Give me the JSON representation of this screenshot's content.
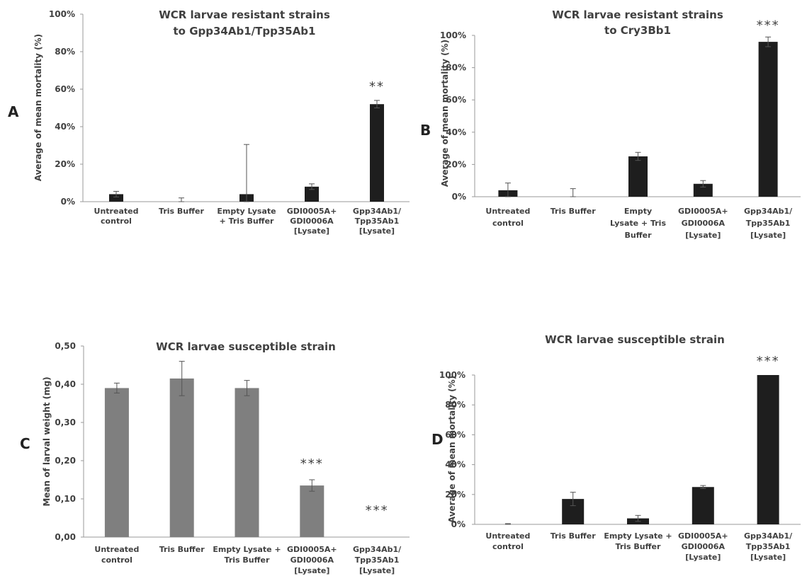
{
  "chart_data": [
    {
      "panel": "A",
      "type": "bar",
      "title": [
        "WCR larvae resistant strains",
        "to Gpp34Ab1/Tpp35Ab1"
      ],
      "ylabel": "Average of mean mortality (%)",
      "ylim": [
        0,
        100
      ],
      "yticks": [
        "0%",
        "20%",
        "40%",
        "60%",
        "80%",
        "100%"
      ],
      "categories": [
        [
          "Untreated",
          "control"
        ],
        [
          "Tris Buffer"
        ],
        [
          "Empty Lysate",
          "+ Tris Buffer"
        ],
        [
          "GDI0005A+",
          "GDI0006A",
          "[Lysate]"
        ],
        [
          "Gpp34Ab1/",
          "Tpp35Ab1",
          "[Lysate]"
        ]
      ],
      "values": [
        4,
        0,
        4,
        8,
        52
      ],
      "errors": [
        1.5,
        2,
        26.5,
        1.5,
        2
      ],
      "significance": [
        "",
        "",
        "",
        "",
        "**"
      ],
      "bar_color": "#1e1e1e"
    },
    {
      "panel": "B",
      "type": "bar",
      "title": [
        "WCR larvae resistant strains",
        "to Cry3Bb1"
      ],
      "ylabel": "Average of mean mortality (%)",
      "ylim": [
        0,
        100
      ],
      "yticks": [
        "0%",
        "20%",
        "40%",
        "60%",
        "80%",
        "100%"
      ],
      "categories": [
        [
          "Untreated",
          "control"
        ],
        [
          "Tris Buffer"
        ],
        [
          "Empty",
          "Lysate + Tris",
          "Buffer"
        ],
        [
          "GDI0005A+",
          "GDI0006A",
          "[Lysate]"
        ],
        [
          "Gpp34Ab1/",
          "Tpp35Ab1",
          "[Lysate]"
        ]
      ],
      "values": [
        4,
        0,
        25,
        8,
        96
      ],
      "errors": [
        4.5,
        5,
        2.5,
        2,
        3
      ],
      "significance": [
        "",
        "",
        "",
        "",
        "***"
      ],
      "bar_color": "#1e1e1e"
    },
    {
      "panel": "C",
      "type": "bar",
      "title": [
        "WCR larvae susceptible strain"
      ],
      "ylabel": "Mean of larval weight (mg)",
      "ylim": [
        0,
        0.5
      ],
      "yticks": [
        "0,00",
        "0,10",
        "0,20",
        "0,30",
        "0,40",
        "0,50"
      ],
      "categories": [
        [
          "Untreated",
          "control"
        ],
        [
          "Tris Buffer"
        ],
        [
          "Empty Lysate +",
          "Tris Buffer"
        ],
        [
          "GDI0005A+",
          "GDI0006A",
          "[Lysate]"
        ],
        [
          "Gpp34Ab1/",
          "Tpp35Ab1",
          "[Lysate]"
        ]
      ],
      "values": [
        0.39,
        0.415,
        0.39,
        0.135,
        0
      ],
      "errors": [
        0.013,
        0.045,
        0.02,
        0.015,
        0
      ],
      "significance": [
        "",
        "",
        "",
        "***",
        "***"
      ],
      "bar_color": "#7f7f7f"
    },
    {
      "panel": "D",
      "type": "bar",
      "title": [
        "WCR larvae susceptible strain"
      ],
      "ylabel": "Average of mean mortality (%)",
      "ylim": [
        0,
        100
      ],
      "yticks": [
        "0%",
        "20%",
        "40%",
        "60%",
        "80%",
        "100%"
      ],
      "categories": [
        [
          "Untreated",
          "control"
        ],
        [
          "Tris Buffer"
        ],
        [
          "Empty Lysate +",
          "Tris Buffer"
        ],
        [
          "GDI0005A+",
          "GDI0006A",
          "[Lysate]"
        ],
        [
          "Gpp34Ab1/",
          "Tpp35Ab1",
          "[Lysate]"
        ]
      ],
      "values": [
        0,
        17,
        4,
        25,
        100
      ],
      "errors": [
        0.5,
        4.5,
        2,
        1,
        0
      ],
      "significance": [
        "",
        "",
        "",
        "",
        "***"
      ],
      "bar_color": "#1e1e1e"
    }
  ]
}
